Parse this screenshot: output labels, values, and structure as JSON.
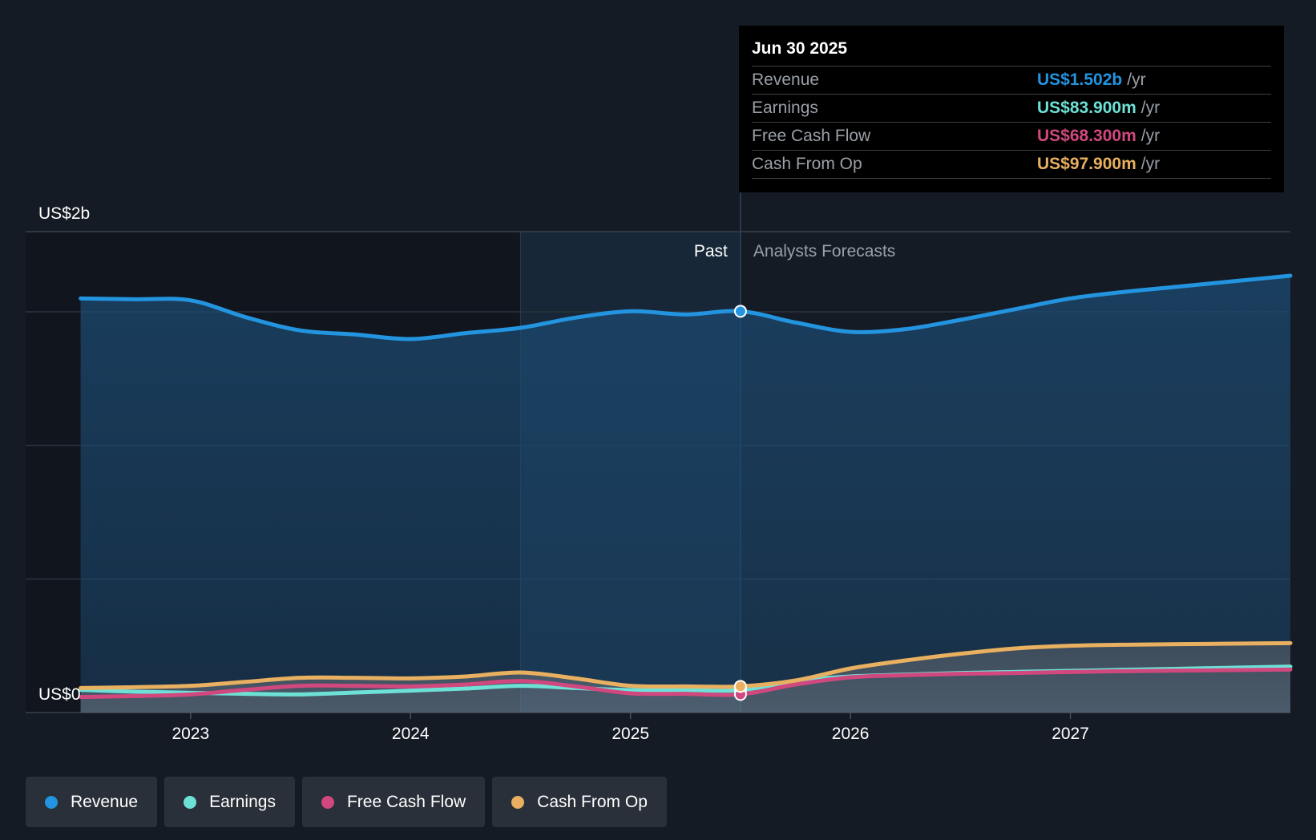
{
  "tooltip": {
    "date": "Jun 30 2025",
    "rows": [
      {
        "name": "Revenue",
        "value": "US$1.502b",
        "unit": "/yr"
      },
      {
        "name": "Earnings",
        "value": "US$83.900m",
        "unit": "/yr"
      },
      {
        "name": "Free Cash Flow",
        "value": "US$68.300m",
        "unit": "/yr"
      },
      {
        "name": "Cash From Op",
        "value": "US$97.900m",
        "unit": "/yr"
      }
    ]
  },
  "legend": [
    {
      "label": "Revenue",
      "color": "#2394df"
    },
    {
      "label": "Earnings",
      "color": "#6ee1d7"
    },
    {
      "label": "Free Cash Flow",
      "color": "#d1487e"
    },
    {
      "label": "Cash From Op",
      "color": "#e8b060"
    }
  ],
  "chart_data": {
    "type": "line",
    "title": "",
    "xlabel": "",
    "ylabel": "",
    "x_ticks": [
      "2023",
      "2024",
      "2025",
      "2026",
      "2027"
    ],
    "x_tick_values": [
      2023.0,
      2024.0,
      2025.0,
      2026.0,
      2027.0
    ],
    "xlim": [
      2022.25,
      2028.0
    ],
    "ylim": [
      0,
      1.8
    ],
    "y_unit": "US$ billions",
    "y_ticks": [
      {
        "value": 0,
        "label": "US$0"
      },
      {
        "value": 1.8,
        "label": "US$2b"
      }
    ],
    "gridlines": [
      0.5,
      1.0,
      1.5
    ],
    "grid": true,
    "past_label": "Past",
    "forecast_label": "Analysts Forecasts",
    "highlight_start": 2024.5,
    "divider_x": 2025.5,
    "data_start": 2022.5,
    "series": [
      {
        "name": "Revenue",
        "color": "#2394df",
        "x": [
          2022.5,
          2022.75,
          2023.0,
          2023.25,
          2023.5,
          2023.75,
          2024.0,
          2024.25,
          2024.5,
          2024.75,
          2025.0,
          2025.25,
          2025.5,
          2025.75,
          2026.0,
          2026.25,
          2026.5,
          2026.75,
          2027.0,
          2027.25,
          2027.5,
          2027.75,
          2028.0
        ],
        "values": [
          1.55,
          1.547,
          1.543,
          1.48,
          1.43,
          1.415,
          1.398,
          1.42,
          1.44,
          1.478,
          1.502,
          1.49,
          1.502,
          1.46,
          1.425,
          1.435,
          1.47,
          1.51,
          1.55,
          1.575,
          1.595,
          1.615,
          1.635
        ]
      },
      {
        "name": "Earnings",
        "color": "#6ee1d7",
        "x": [
          2022.5,
          2022.75,
          2023.0,
          2023.25,
          2023.5,
          2023.75,
          2024.0,
          2024.25,
          2024.5,
          2024.75,
          2025.0,
          2025.25,
          2025.5,
          2025.75,
          2026.0,
          2026.25,
          2026.5,
          2026.75,
          2027.0,
          2027.25,
          2027.5,
          2027.75,
          2028.0
        ],
        "values": [
          0.085,
          0.078,
          0.074,
          0.07,
          0.068,
          0.075,
          0.082,
          0.09,
          0.1,
          0.092,
          0.084,
          0.084,
          0.084,
          0.118,
          0.135,
          0.142,
          0.148,
          0.152,
          0.156,
          0.16,
          0.164,
          0.168,
          0.172
        ]
      },
      {
        "name": "Free Cash Flow",
        "color": "#d1487e",
        "x": [
          2022.5,
          2022.75,
          2023.0,
          2023.25,
          2023.5,
          2023.75,
          2024.0,
          2024.25,
          2024.5,
          2024.75,
          2025.0,
          2025.25,
          2025.5,
          2025.75,
          2026.0,
          2026.25,
          2026.5,
          2026.75,
          2027.0,
          2027.25,
          2027.5,
          2027.75,
          2028.0
        ],
        "values": [
          0.058,
          0.062,
          0.068,
          0.085,
          0.1,
          0.1,
          0.098,
          0.105,
          0.118,
          0.098,
          0.072,
          0.07,
          0.068,
          0.105,
          0.132,
          0.14,
          0.145,
          0.148,
          0.152,
          0.155,
          0.157,
          0.159,
          0.161
        ]
      },
      {
        "name": "Cash From Op",
        "color": "#e8b060",
        "x": [
          2022.5,
          2022.75,
          2023.0,
          2023.25,
          2023.5,
          2023.75,
          2024.0,
          2024.25,
          2024.5,
          2024.75,
          2025.0,
          2025.25,
          2025.5,
          2025.75,
          2026.0,
          2026.25,
          2026.5,
          2026.75,
          2027.0,
          2027.25,
          2027.5,
          2027.75,
          2028.0
        ],
        "values": [
          0.092,
          0.095,
          0.1,
          0.115,
          0.13,
          0.13,
          0.128,
          0.135,
          0.15,
          0.128,
          0.1,
          0.098,
          0.098,
          0.12,
          0.165,
          0.195,
          0.22,
          0.24,
          0.25,
          0.254,
          0.256,
          0.258,
          0.26
        ]
      }
    ]
  }
}
